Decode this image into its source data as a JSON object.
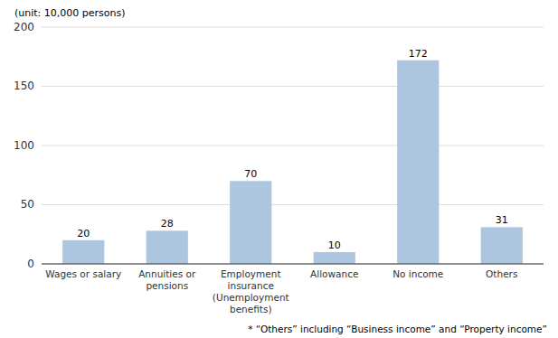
{
  "chart_data": {
    "type": "bar",
    "ylabel": "(unit: 10,000 persons)",
    "annotations": [
      "* “Others” including “Business income” and “Property income”"
    ],
    "categories": [
      "Wages or salary",
      "Annuities or\npensions",
      "Employment\ninsurance\n(Unemployment\nbenefits)",
      "Allowance",
      "No income",
      "Others"
    ],
    "values": [
      20,
      28,
      70,
      10,
      172,
      31
    ],
    "color": "#adc6e0",
    "ylim": [
      0,
      200
    ],
    "yticks": [
      0,
      50,
      100,
      150,
      200
    ],
    "grid": true,
    "data_labels": true
  }
}
